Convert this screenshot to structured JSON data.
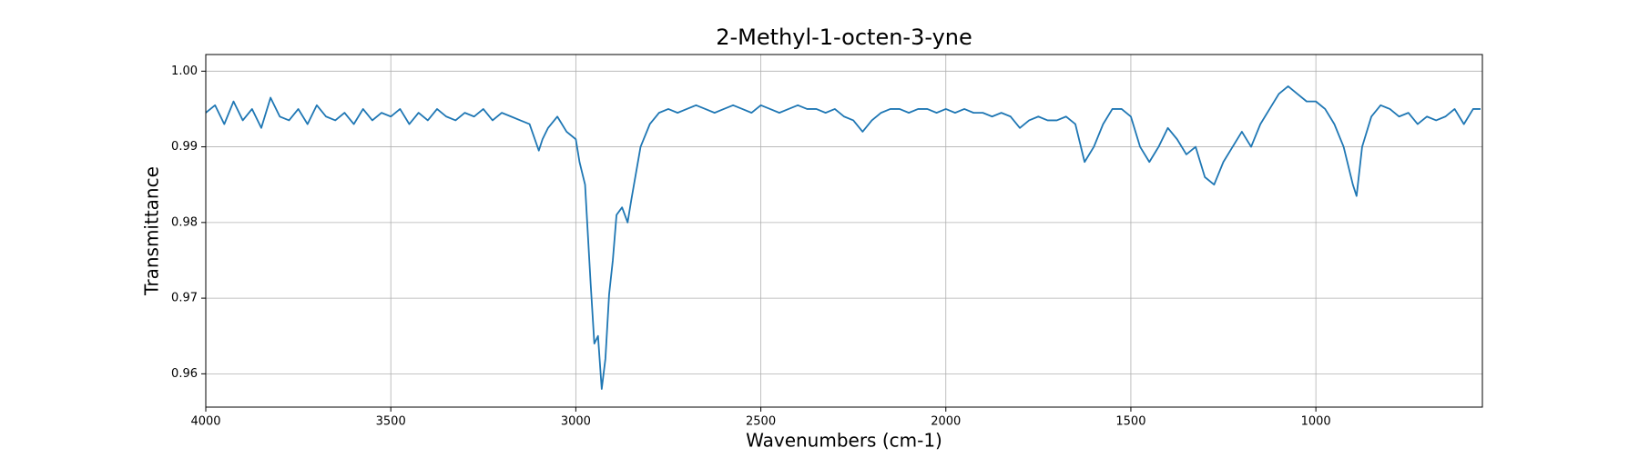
{
  "chart_data": {
    "type": "line",
    "title": "2-Methyl-1-octen-3-yne",
    "x_label": "Wavenumbers (cm-1)",
    "y_label": "Transmittance",
    "x": [
      4000,
      3975,
      3950,
      3925,
      3900,
      3875,
      3850,
      3825,
      3800,
      3775,
      3750,
      3725,
      3700,
      3675,
      3650,
      3625,
      3600,
      3575,
      3550,
      3525,
      3500,
      3475,
      3450,
      3425,
      3400,
      3375,
      3350,
      3325,
      3300,
      3275,
      3250,
      3225,
      3200,
      3175,
      3150,
      3125,
      3100,
      3090,
      3075,
      3050,
      3025,
      3000,
      2990,
      2975,
      2960,
      2950,
      2940,
      2930,
      2920,
      2910,
      2900,
      2890,
      2875,
      2860,
      2850,
      2825,
      2800,
      2775,
      2750,
      2725,
      2700,
      2675,
      2650,
      2625,
      2600,
      2575,
      2550,
      2525,
      2500,
      2475,
      2450,
      2425,
      2400,
      2375,
      2350,
      2325,
      2300,
      2275,
      2250,
      2225,
      2200,
      2175,
      2150,
      2125,
      2100,
      2075,
      2050,
      2025,
      2000,
      1975,
      1950,
      1925,
      1900,
      1875,
      1850,
      1825,
      1800,
      1775,
      1750,
      1725,
      1700,
      1675,
      1650,
      1625,
      1600,
      1575,
      1550,
      1525,
      1500,
      1475,
      1450,
      1425,
      1400,
      1375,
      1350,
      1325,
      1300,
      1275,
      1250,
      1225,
      1200,
      1175,
      1150,
      1125,
      1100,
      1075,
      1050,
      1025,
      1000,
      975,
      950,
      925,
      900,
      890,
      875,
      850,
      825,
      800,
      775,
      750,
      725,
      700,
      675,
      650,
      625,
      600,
      575,
      555
    ],
    "values": [
      0.9945,
      0.9955,
      0.993,
      0.996,
      0.9935,
      0.995,
      0.9925,
      0.9965,
      0.994,
      0.9935,
      0.995,
      0.993,
      0.9955,
      0.994,
      0.9935,
      0.9945,
      0.993,
      0.995,
      0.9935,
      0.9945,
      0.994,
      0.995,
      0.993,
      0.9945,
      0.9935,
      0.995,
      0.994,
      0.9935,
      0.9945,
      0.994,
      0.995,
      0.9935,
      0.9945,
      0.994,
      0.9935,
      0.993,
      0.9895,
      0.991,
      0.9925,
      0.994,
      0.992,
      0.991,
      0.988,
      0.985,
      0.972,
      0.964,
      0.965,
      0.958,
      0.962,
      0.9705,
      0.975,
      0.981,
      0.982,
      0.98,
      0.983,
      0.99,
      0.993,
      0.9945,
      0.995,
      0.9945,
      0.995,
      0.9955,
      0.995,
      0.9945,
      0.995,
      0.9955,
      0.995,
      0.9945,
      0.9955,
      0.995,
      0.9945,
      0.995,
      0.9955,
      0.995,
      0.995,
      0.9945,
      0.995,
      0.994,
      0.9935,
      0.992,
      0.9935,
      0.9945,
      0.995,
      0.995,
      0.9945,
      0.995,
      0.995,
      0.9945,
      0.995,
      0.9945,
      0.995,
      0.9945,
      0.9945,
      0.994,
      0.9945,
      0.994,
      0.9925,
      0.9935,
      0.994,
      0.9935,
      0.9935,
      0.994,
      0.993,
      0.988,
      0.99,
      0.993,
      0.995,
      0.995,
      0.994,
      0.99,
      0.988,
      0.99,
      0.9925,
      0.991,
      0.989,
      0.99,
      0.986,
      0.985,
      0.988,
      0.99,
      0.992,
      0.99,
      0.993,
      0.995,
      0.997,
      0.998,
      0.997,
      0.996,
      0.996,
      0.995,
      0.993,
      0.99,
      0.985,
      0.9835,
      0.99,
      0.994,
      0.9955,
      0.995,
      0.994,
      0.9945,
      0.993,
      0.994,
      0.9935,
      0.994,
      0.995,
      0.993,
      0.995,
      0.995
    ],
    "color": "#1f77b4",
    "xlim": [
      4000,
      550
    ],
    "xticks": [
      4000,
      3500,
      3000,
      2500,
      2000,
      1500,
      1000
    ],
    "ylim": [
      0.9556,
      1.0022
    ],
    "yticks": [
      0.96,
      0.97,
      0.98,
      0.99,
      {
        "value": 1,
        "label": "1.00"
      }
    ],
    "grid": true
  }
}
